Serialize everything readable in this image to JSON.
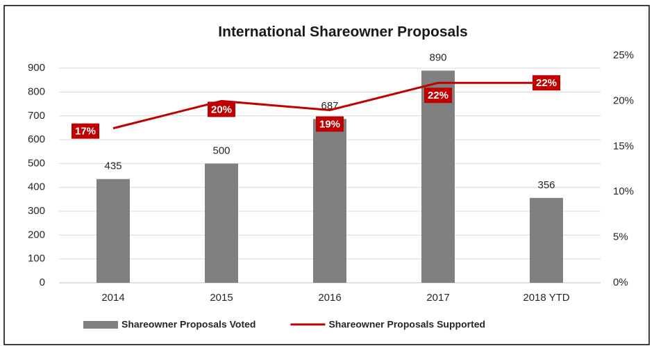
{
  "chart_data": {
    "type": "bar",
    "title": "International Shareowner Proposals",
    "categories": [
      "2014",
      "2015",
      "2016",
      "2017",
      "2018 YTD"
    ],
    "series": [
      {
        "name": "Shareowner Proposals Voted",
        "type": "bar",
        "color": "#808080",
        "values": [
          435,
          500,
          687,
          890,
          356
        ]
      },
      {
        "name": "Shareowner Proposals Supported",
        "type": "line",
        "axis": "y2",
        "color": "#c00000",
        "values": [
          17,
          20,
          19,
          22,
          22
        ],
        "value_labels": [
          "17%",
          "20%",
          "19%",
          "22%",
          "22%"
        ]
      }
    ],
    "ylim": [
      0,
      953
    ],
    "yticks": [
      0,
      100,
      200,
      300,
      400,
      500,
      600,
      700,
      800,
      900
    ],
    "y2lim": [
      0,
      25
    ],
    "y2ticks": [
      {
        "value": 0,
        "label": "0%"
      },
      {
        "value": 5,
        "label": "5%"
      },
      {
        "value": 10,
        "label": "10%"
      },
      {
        "value": 15,
        "label": "15%"
      },
      {
        "value": 20,
        "label": "20%"
      },
      {
        "value": 25,
        "label": "25%"
      }
    ],
    "grid": true,
    "legend": "bottom"
  }
}
